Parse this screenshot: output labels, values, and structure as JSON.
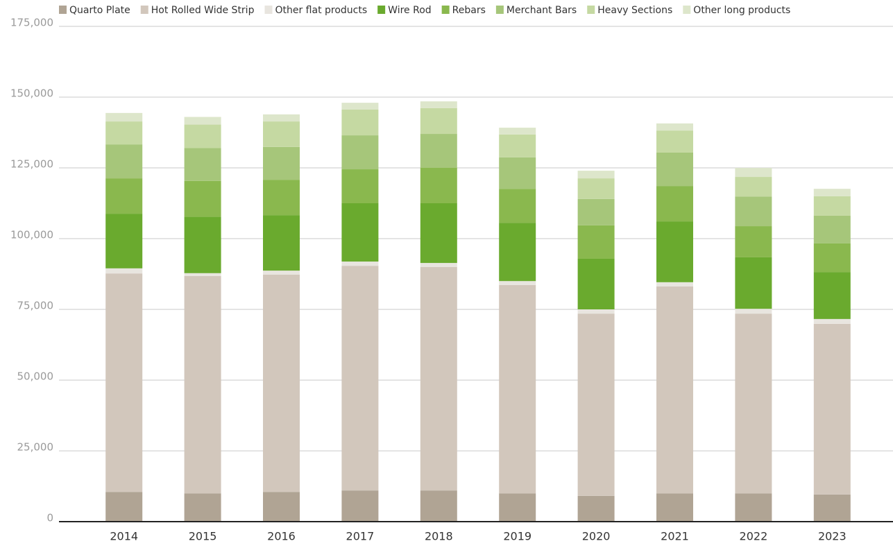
{
  "chart_data": {
    "type": "stacked_bar",
    "categories": [
      "2014",
      "2015",
      "2016",
      "2017",
      "2018",
      "2019",
      "2020",
      "2021",
      "2022",
      "2023"
    ],
    "series": [
      {
        "name": "Quarto Plate",
        "color": "#b0a494",
        "values": [
          10500,
          10000,
          10500,
          11000,
          11000,
          10000,
          9100,
          10000,
          10000,
          9600
        ]
      },
      {
        "name": "Hot Rolled Wide Strip",
        "color": "#d2c7bc",
        "values": [
          77200,
          76800,
          76800,
          79400,
          79000,
          73600,
          64400,
          73100,
          63500,
          60300
        ]
      },
      {
        "name": "Other flat products",
        "color": "#e8e5df",
        "values": [
          1800,
          1000,
          1400,
          1500,
          1400,
          1400,
          1500,
          1500,
          1700,
          1700
        ]
      },
      {
        "name": "Wire Rod",
        "color": "#6aaa2e",
        "values": [
          19300,
          19900,
          19600,
          20600,
          21100,
          20600,
          17900,
          21500,
          18200,
          16600
        ]
      },
      {
        "name": "Rebars",
        "color": "#8ab84e",
        "values": [
          12500,
          12700,
          12500,
          12000,
          12500,
          12000,
          11800,
          12500,
          11000,
          10100
        ]
      },
      {
        "name": "Merchant Bars",
        "color": "#a6c67a",
        "values": [
          12000,
          11600,
          11600,
          12000,
          12000,
          11100,
          9300,
          11800,
          10500,
          9800
        ]
      },
      {
        "name": "Heavy Sections",
        "color": "#c5d9a2",
        "values": [
          8100,
          8300,
          9000,
          9100,
          9100,
          8100,
          7300,
          7800,
          6900,
          6900
        ]
      },
      {
        "name": "Other long products",
        "color": "#dde6cb",
        "values": [
          3000,
          2700,
          2500,
          2400,
          2400,
          2400,
          2700,
          2500,
          3200,
          2600
        ]
      }
    ],
    "ylim": [
      0,
      175000
    ],
    "yticks": [
      0,
      {
        "value": 25000,
        "label": "25,000"
      },
      {
        "value": 50000,
        "label": "50,000"
      },
      {
        "value": 75000,
        "label": "75,000"
      },
      {
        "value": 100000,
        "label": "100,000"
      },
      {
        "value": 125000,
        "label": "125,000"
      },
      {
        "value": 150000,
        "label": "150,000"
      },
      {
        "value": 175000,
        "label": "175,000"
      }
    ],
    "grid": true
  }
}
